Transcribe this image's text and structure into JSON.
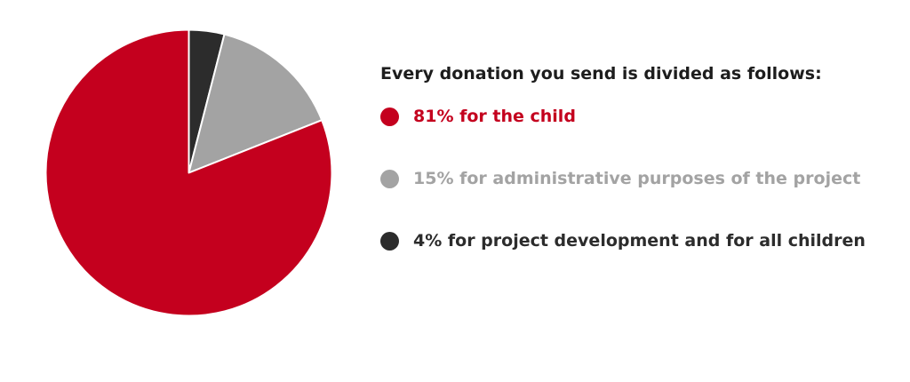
{
  "chart_data": {
    "type": "pie",
    "title": "Every donation you send is divided as follows:",
    "slices": [
      {
        "label": "81% for the child",
        "value": 81,
        "color": "#c4001e"
      },
      {
        "label": "15% for administrative purposes of the project",
        "value": 15,
        "color": "#a3a3a3"
      },
      {
        "label": "4% for project development and for all children",
        "value": 4,
        "color": "#2c2c2c"
      }
    ],
    "legend_placement": "right",
    "slice_border_color": "#ffffff"
  }
}
